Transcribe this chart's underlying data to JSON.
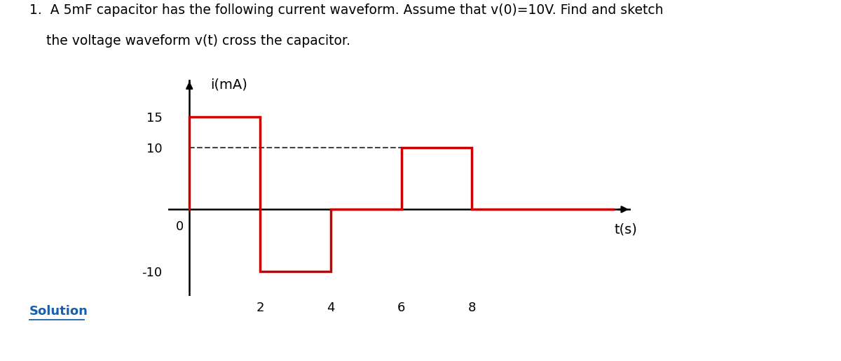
{
  "title_line1": "1.  A 5mF capacitor has the following current waveform. Assume that v(0)=10V. Find and sketch",
  "title_line2": "    the voltage waveform v(t) cross the capacitor.",
  "ylabel": "i(mA)",
  "xlabel": "t(s)",
  "waveform_x": [
    0,
    0,
    2,
    2,
    4,
    4,
    6,
    6,
    8,
    8,
    12
  ],
  "waveform_y": [
    0,
    15,
    15,
    -10,
    -10,
    0,
    0,
    10,
    10,
    0,
    0
  ],
  "waveform_color": "#cc0000",
  "waveform_linewidth": 2.5,
  "dashed_y": 10,
  "dashed_x_start": 0,
  "dashed_x_end": 6,
  "dashed_color": "#444444",
  "dashed_linewidth": 1.5,
  "axis_color": "#000000",
  "ytick_vals": [
    -10,
    10,
    15
  ],
  "xtick_vals": [
    2,
    4,
    6,
    8
  ],
  "xlim": [
    -0.6,
    12.5
  ],
  "ylim": [
    -14,
    21
  ],
  "solution_text": "Solution",
  "solution_color": "#1a5faa",
  "background_color": "#ffffff",
  "title_fontsize": 13.5,
  "axis_label_fontsize": 14,
  "tick_fontsize": 13,
  "solution_fontsize": 13
}
